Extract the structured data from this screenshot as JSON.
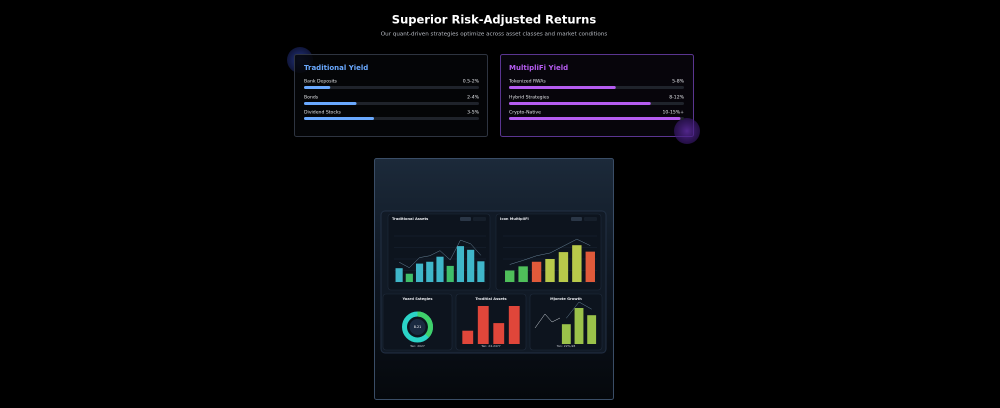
{
  "header": {
    "title": "Superior Risk-Adjusted Returns",
    "subtitle": "Our quant-driven strategies optimize across asset classes and market conditions"
  },
  "cards": [
    {
      "title": "Traditional Yield",
      "color": "#6aa9ff",
      "rows": [
        {
          "label": "Bank Deposits",
          "range": "0.5-2%",
          "fill": 15
        },
        {
          "label": "Bonds",
          "range": "2-4%",
          "fill": 30
        },
        {
          "label": "Dividend Stocks",
          "range": "3-5%",
          "fill": 40
        }
      ]
    },
    {
      "title": "MultipliFi Yield",
      "color": "#b55cf0",
      "rows": [
        {
          "label": "Tokenized RWAs",
          "range": "5-8%",
          "fill": 61
        },
        {
          "label": "Hybrid Strategies",
          "range": "8-12%",
          "fill": 81
        },
        {
          "label": "Crypto-Native",
          "range": "10-15%+",
          "fill": 98
        }
      ]
    }
  ],
  "dashboard": {
    "panels": [
      {
        "title": "Traditional Assets",
        "ylim": [
          0,
          100
        ],
        "values": [
          30,
          18,
          40,
          44,
          55,
          35,
          78,
          70,
          45
        ],
        "colors": [
          "#3fb6c9",
          "#3fbf6a",
          "#3fb6c9",
          "#3fb6c9",
          "#3fb6c9",
          "#3fbf6a",
          "#3fb6c9",
          "#3fb6c9",
          "#3fb6c9"
        ]
      },
      {
        "title": "Icon MultipliFi",
        "ylim": [
          0,
          100
        ],
        "values": [
          25,
          34,
          44,
          50,
          65,
          80,
          66
        ],
        "colors": [
          "#4fbf5a",
          "#4fbf5a",
          "#e05a3a",
          "#b8c94a",
          "#b8c94a",
          "#b8c94a",
          "#e05a3a"
        ]
      },
      {
        "title": "Yoard Sstegies",
        "caption": "Ten: 2027",
        "center": "8.21"
      },
      {
        "title": "Troditial Assets",
        "caption": "Ten: 24.2477",
        "ylim": [
          0,
          100
        ],
        "values": [
          35,
          100,
          55,
          100
        ],
        "colors": [
          "#e0463a",
          "#e0463a",
          "#e0463a",
          "#e0463a"
        ]
      },
      {
        "title": "Mjorote Growth",
        "caption": "Ten: 22%,98",
        "ylim": [
          0,
          100
        ],
        "values": [
          55,
          100,
          80
        ],
        "colors": [
          "#9bc24a",
          "#9bc24a",
          "#9bc24a"
        ]
      }
    ]
  }
}
